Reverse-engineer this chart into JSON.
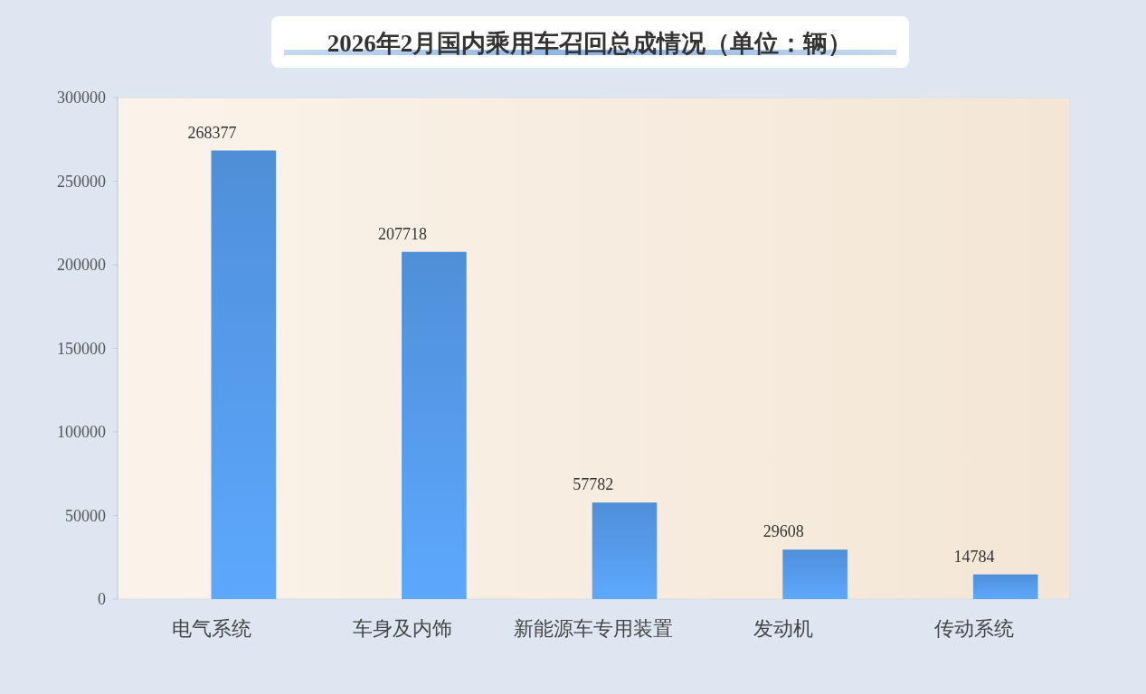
{
  "chart_data": {
    "type": "bar",
    "title": "2026年2月国内乘用车召回总成情况（单位：辆）",
    "categories": [
      "电气系统",
      "车身及内饰",
      "新能源车专用装置",
      "发动机",
      "传动系统"
    ],
    "values": [
      268377,
      207718,
      57782,
      29608,
      14784
    ],
    "color": "#4f8fd8",
    "ylim": [
      0,
      300000
    ],
    "yticks": [
      0,
      50000,
      100000,
      150000,
      200000,
      250000,
      300000
    ],
    "grid": false,
    "data_labels": true
  }
}
